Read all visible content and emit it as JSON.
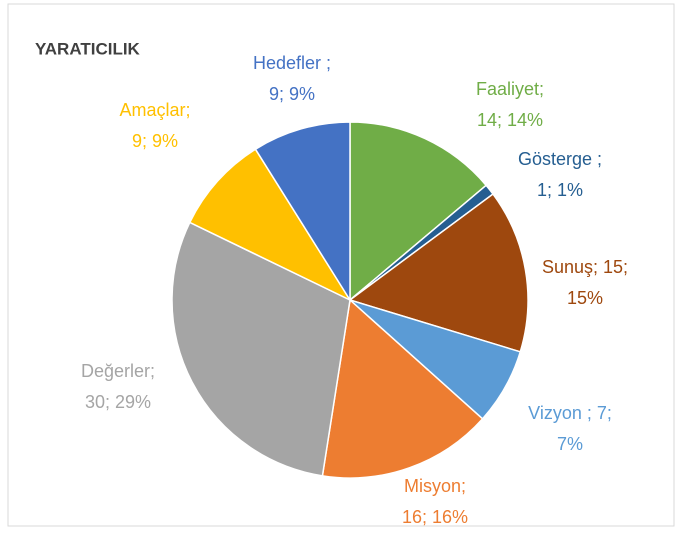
{
  "chart_data": {
    "type": "pie",
    "title": "YARATICILIK",
    "values": [
      14,
      1,
      15,
      7,
      16,
      30,
      9,
      9
    ],
    "value_labels": [
      [
        "Faaliyet;",
        "14; 14%"
      ],
      [
        "Gösterge ;",
        "1; 1%"
      ],
      [
        "Sunuş; 15;",
        "15%"
      ],
      [
        "Vizyon ; 7;",
        "7%"
      ],
      [
        "Misyon;",
        "16; 16%"
      ],
      [
        "Değerler;",
        "30; 29%"
      ],
      [
        "Amaçlar;",
        "9; 9%"
      ],
      [
        "Hedefler ;",
        "9; 9%"
      ]
    ],
    "colors": [
      "#70ad47",
      "#255e91",
      "#9e480e",
      "#5b9bd5",
      "#ed7d31",
      "#a5a5a5",
      "#ffc000",
      "#4472c4"
    ]
  }
}
